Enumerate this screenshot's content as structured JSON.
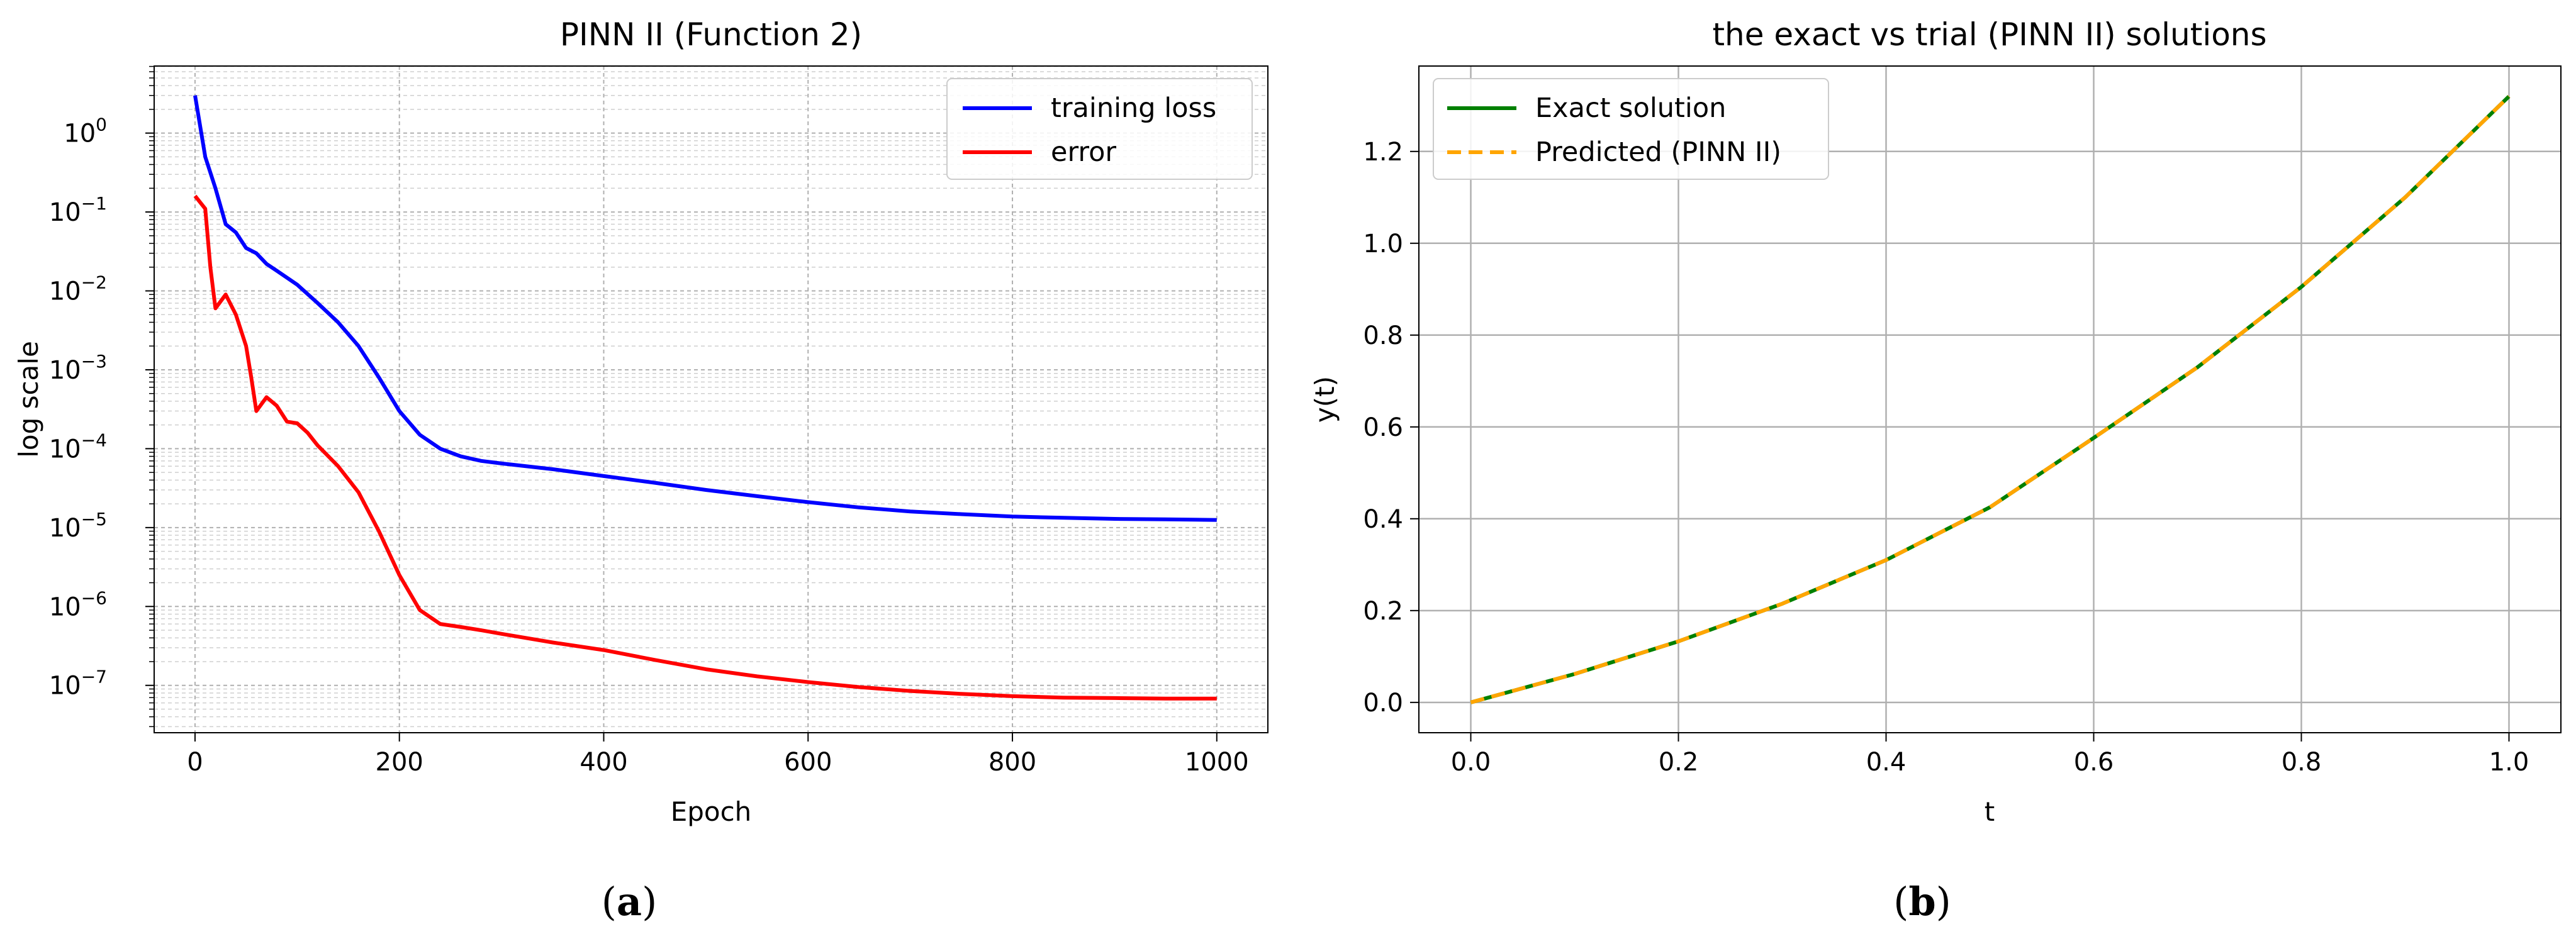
{
  "chart_data": [
    {
      "type": "line",
      "title": "PINN II (Function 2)",
      "xlabel": "Epoch",
      "ylabel": "log scale",
      "caption_letter": "a",
      "xlim": [
        -40,
        1050
      ],
      "ylim_log10": [
        -7.6,
        0.85
      ],
      "yscale": "log",
      "grid": "major and minor",
      "legend_position": "top-right",
      "x_ticks": [
        0,
        200,
        400,
        600,
        800,
        1000
      ],
      "x_tick_labels": [
        "0",
        "200",
        "400",
        "600",
        "800",
        "1000"
      ],
      "y_ticks_exp": [
        "0",
        "−1",
        "−2",
        "−3",
        "−4",
        "−5",
        "−6",
        "−7"
      ],
      "series": [
        {
          "name": "training loss",
          "color": "#0000ff",
          "x": [
            0,
            10,
            20,
            30,
            40,
            50,
            60,
            70,
            80,
            100,
            120,
            140,
            160,
            180,
            200,
            220,
            240,
            260,
            280,
            300,
            350,
            400,
            450,
            500,
            550,
            600,
            650,
            700,
            750,
            800,
            850,
            900,
            950,
            1000
          ],
          "y": [
            3.0,
            0.5,
            0.2,
            0.07,
            0.055,
            0.035,
            0.03,
            0.022,
            0.018,
            0.012,
            0.007,
            0.004,
            0.002,
            0.0008,
            0.0003,
            0.00015,
            0.0001,
            8e-05,
            7e-05,
            6.5e-05,
            5.5e-05,
            4.5e-05,
            3.7e-05,
            3e-05,
            2.5e-05,
            2.1e-05,
            1.8e-05,
            1.6e-05,
            1.48e-05,
            1.38e-05,
            1.33e-05,
            1.29e-05,
            1.27e-05,
            1.25e-05
          ]
        },
        {
          "name": "error",
          "color": "#ff0000",
          "x": [
            0,
            10,
            15,
            20,
            30,
            40,
            50,
            55,
            60,
            70,
            80,
            90,
            100,
            110,
            120,
            140,
            160,
            180,
            200,
            220,
            240,
            260,
            280,
            300,
            350,
            400,
            450,
            500,
            550,
            600,
            650,
            700,
            750,
            800,
            850,
            900,
            950,
            1000
          ],
          "y": [
            0.16,
            0.11,
            0.02,
            0.006,
            0.009,
            0.005,
            0.002,
            0.0008,
            0.0003,
            0.00045,
            0.00035,
            0.00022,
            0.00021,
            0.00016,
            0.00011,
            6e-05,
            2.8e-05,
            9e-06,
            2.5e-06,
            9e-07,
            6e-07,
            5.5e-07,
            5e-07,
            4.5e-07,
            3.5e-07,
            2.8e-07,
            2.1e-07,
            1.6e-07,
            1.3e-07,
            1.1e-07,
            9.5e-08,
            8.5e-08,
            7.8e-08,
            7.3e-08,
            7e-08,
            6.9e-08,
            6.8e-08,
            6.8e-08
          ]
        }
      ]
    },
    {
      "type": "line",
      "title": "the exact vs trial (PINN II) solutions",
      "xlabel": "t",
      "ylabel": "y(t)",
      "caption_letter": "b",
      "xlim": [
        -0.05,
        1.05
      ],
      "ylim": [
        -0.066,
        1.386
      ],
      "grid": "major",
      "legend_position": "top-left",
      "x_ticks": [
        0.0,
        0.2,
        0.4,
        0.6,
        0.8,
        1.0
      ],
      "x_tick_labels": [
        "0.0",
        "0.2",
        "0.4",
        "0.6",
        "0.8",
        "1.0"
      ],
      "y_ticks": [
        0.0,
        0.2,
        0.4,
        0.6,
        0.8,
        1.0,
        1.2
      ],
      "y_tick_labels": [
        "0.0",
        "0.2",
        "0.4",
        "0.6",
        "0.8",
        "1.0",
        "1.2"
      ],
      "series": [
        {
          "name": "Exact solution",
          "color": "#008000",
          "style": "solid",
          "x": [
            0.0,
            0.1,
            0.2,
            0.3,
            0.4,
            0.5,
            0.6,
            0.7,
            0.8,
            0.9,
            1.0
          ],
          "y": [
            0.0,
            0.062,
            0.133,
            0.215,
            0.31,
            0.425,
            0.576,
            0.73,
            0.905,
            1.1,
            1.32
          ]
        },
        {
          "name": "Predicted (PINN II)",
          "color": "#ffa500",
          "style": "dashed",
          "x": [
            0.0,
            0.1,
            0.2,
            0.3,
            0.4,
            0.5,
            0.6,
            0.7,
            0.8,
            0.9,
            1.0
          ],
          "y": [
            0.0,
            0.062,
            0.133,
            0.215,
            0.31,
            0.425,
            0.576,
            0.73,
            0.905,
            1.1,
            1.32
          ]
        }
      ]
    }
  ]
}
